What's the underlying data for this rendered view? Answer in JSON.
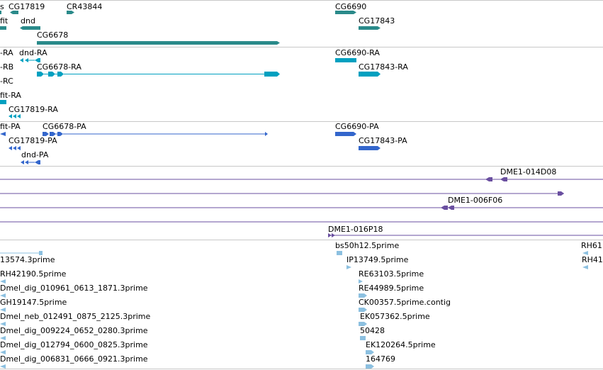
{
  "colors": {
    "gene": "#2a8a8a",
    "transcript": "#00a0c0",
    "protein": "#3366cc",
    "clone": "#6a4fa0",
    "est": "#8cc0e0"
  },
  "gene_track": {
    "labels": [
      "CG17819",
      "CR43844",
      "CG6690",
      "fit",
      "dnd",
      "CG17843",
      "CG6678"
    ]
  },
  "transcript_track": {
    "labels": [
      "-RA",
      "dnd-RA",
      "CG6690-RA",
      "-RB",
      "CG6678-RA",
      "CG17843-RA",
      "-RC",
      "fit-RA",
      "CG17819-RA"
    ]
  },
  "protein_track": {
    "labels": [
      "fit-PA",
      "CG6678-PA",
      "CG6690-PA",
      "CG17819-PA",
      "CG17843-PA",
      "dnd-PA"
    ]
  },
  "clone_track": {
    "labels": [
      "DME1-014D08",
      "DME1-006F06",
      "DME1-016P18"
    ]
  },
  "est_track": {
    "labels": [
      "bs50h12.5prime",
      "RH61",
      "13574.3prime",
      "IP13749.5prime",
      "RH41",
      "RH42190.5prime",
      "RE63103.5prime",
      "Dmel_dig_010961_0613_1871.3prime",
      "RE44989.5prime",
      "GH19147.5prime",
      "CK00357.5prime.contig",
      "Dmel_neb_012491_0875_2125.3prime",
      "EK057362.5prime",
      "Dmel_dig_009224_0652_0280.3prime",
      "50428",
      "Dmel_dig_012794_0600_0825.3prime",
      "EK120264.5prime",
      "Dmel_dig_006831_0666_0921.3prime",
      "164769"
    ]
  }
}
